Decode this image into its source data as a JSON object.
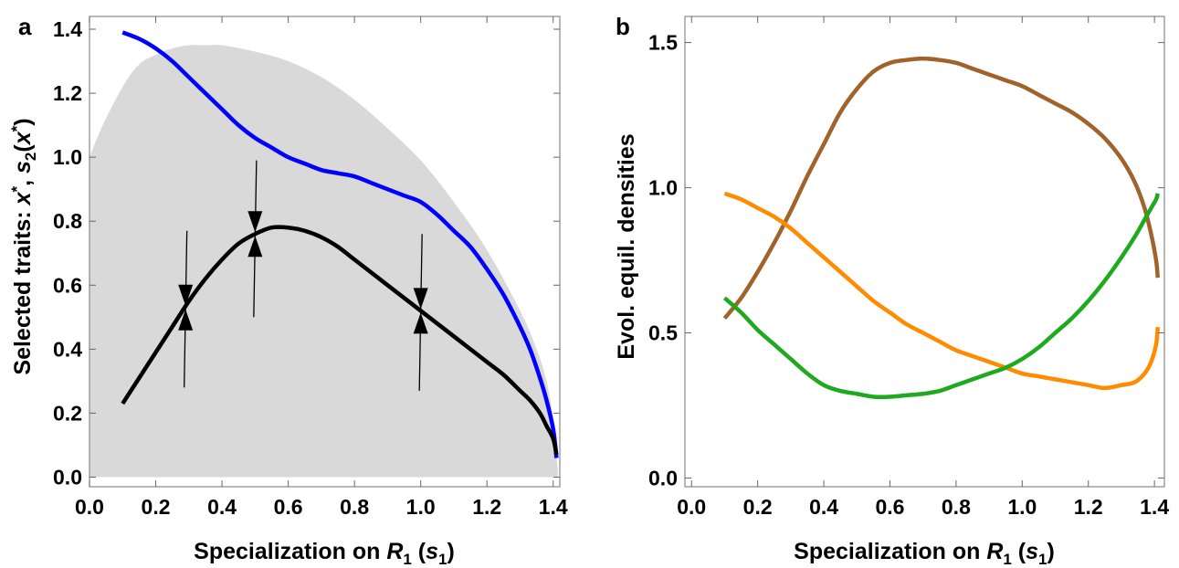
{
  "chart_data": [
    {
      "panel_label": "a",
      "type": "line",
      "xlabel": {
        "main": "Specialization on ",
        "var": "R",
        "sub": "1",
        "paren": "s",
        "paren_sub": "1"
      },
      "ylabel": {
        "main": "Selected traits: ",
        "x": "x",
        "star": "*",
        "s": "s",
        "s_sub": "2",
        "x2": "x",
        "star2": "*"
      },
      "xlim": [
        0.0,
        1.42
      ],
      "ylim": [
        -0.03,
        1.44
      ],
      "xticks": [
        "0.0",
        "0.2",
        "0.4",
        "0.6",
        "0.8",
        "1.0",
        "1.2",
        "1.4"
      ],
      "yticks": [
        "0.0",
        "0.2",
        "0.4",
        "0.6",
        "0.8",
        "1.0",
        "1.2",
        "1.4"
      ],
      "grid": false,
      "shaded_region": {
        "color": "#d9d9d9",
        "upper": {
          "x": [
            0.0,
            0.04,
            0.1,
            0.15,
            0.2,
            0.25,
            0.3,
            0.35,
            0.4,
            0.5,
            0.6,
            0.7,
            0.8,
            0.9,
            1.0,
            1.1,
            1.2,
            1.3,
            1.35,
            1.38,
            1.4,
            1.414
          ],
          "y": [
            1.0,
            1.1,
            1.22,
            1.29,
            1.32,
            1.34,
            1.35,
            1.35,
            1.35,
            1.33,
            1.3,
            1.25,
            1.18,
            1.09,
            0.99,
            0.86,
            0.71,
            0.52,
            0.4,
            0.3,
            0.18,
            0.02
          ]
        },
        "lower": 0.0
      },
      "series": [
        {
          "color": "#0000ff",
          "x": [
            0.1,
            0.15,
            0.2,
            0.25,
            0.3,
            0.35,
            0.4,
            0.45,
            0.5,
            0.55,
            0.6,
            0.65,
            0.7,
            0.75,
            0.8,
            0.85,
            0.9,
            0.95,
            1.0,
            1.05,
            1.1,
            1.15,
            1.2,
            1.25,
            1.3,
            1.33,
            1.36,
            1.38,
            1.4,
            1.41
          ],
          "y": [
            1.39,
            1.37,
            1.34,
            1.3,
            1.25,
            1.2,
            1.15,
            1.1,
            1.06,
            1.03,
            1.0,
            0.98,
            0.96,
            0.95,
            0.94,
            0.92,
            0.9,
            0.88,
            0.86,
            0.82,
            0.77,
            0.72,
            0.65,
            0.57,
            0.47,
            0.4,
            0.31,
            0.24,
            0.15,
            0.06
          ]
        },
        {
          "color": "#000000",
          "x": [
            0.1,
            0.15,
            0.2,
            0.25,
            0.3,
            0.35,
            0.4,
            0.45,
            0.5,
            0.55,
            0.6,
            0.65,
            0.7,
            0.75,
            0.8,
            0.85,
            0.9,
            0.95,
            1.0,
            1.05,
            1.1,
            1.15,
            1.2,
            1.25,
            1.3,
            1.33,
            1.36,
            1.38,
            1.4,
            1.41
          ],
          "y": [
            0.23,
            0.31,
            0.39,
            0.47,
            0.55,
            0.62,
            0.68,
            0.73,
            0.76,
            0.78,
            0.78,
            0.77,
            0.75,
            0.72,
            0.68,
            0.64,
            0.6,
            0.56,
            0.52,
            0.48,
            0.44,
            0.4,
            0.36,
            0.32,
            0.27,
            0.24,
            0.2,
            0.16,
            0.12,
            0.07
          ]
        }
      ],
      "arrows": [
        {
          "x": 0.29,
          "y": 0.53,
          "y_top": 0.77,
          "y_bottom": 0.28
        },
        {
          "x": 0.5,
          "y": 0.76,
          "y_top": 0.99,
          "y_bottom": 0.5
        },
        {
          "x": 1.0,
          "y": 0.52,
          "y_top": 0.76,
          "y_bottom": 0.27
        }
      ]
    },
    {
      "panel_label": "b",
      "type": "line",
      "xlabel": {
        "main": "Specialization on ",
        "var": "R",
        "sub": "1",
        "paren": "s",
        "paren_sub": "1"
      },
      "ylabel": "Evol. equil. densities",
      "xlim": [
        -0.02,
        1.43
      ],
      "ylim": [
        -0.03,
        1.59
      ],
      "xticks": [
        "0.0",
        "0.2",
        "0.4",
        "0.6",
        "0.8",
        "1.0",
        "1.2",
        "1.4"
      ],
      "yticks": [
        "0.0",
        "0.5",
        "1.0",
        "1.5"
      ],
      "grid": false,
      "series": [
        {
          "color": "#a0632c",
          "x": [
            0.1,
            0.15,
            0.2,
            0.25,
            0.3,
            0.35,
            0.4,
            0.45,
            0.5,
            0.55,
            0.6,
            0.65,
            0.7,
            0.75,
            0.8,
            0.85,
            0.9,
            0.95,
            1.0,
            1.05,
            1.1,
            1.15,
            1.2,
            1.25,
            1.3,
            1.34,
            1.37,
            1.39,
            1.405,
            1.41
          ],
          "y": [
            0.55,
            0.62,
            0.71,
            0.81,
            0.92,
            1.04,
            1.15,
            1.26,
            1.34,
            1.4,
            1.43,
            1.44,
            1.445,
            1.44,
            1.43,
            1.41,
            1.39,
            1.37,
            1.35,
            1.32,
            1.29,
            1.26,
            1.22,
            1.17,
            1.1,
            1.02,
            0.93,
            0.84,
            0.75,
            0.69
          ]
        },
        {
          "color": "#ff8c00",
          "x": [
            0.1,
            0.15,
            0.2,
            0.25,
            0.3,
            0.35,
            0.4,
            0.45,
            0.5,
            0.55,
            0.6,
            0.65,
            0.7,
            0.75,
            0.8,
            0.85,
            0.9,
            0.95,
            1.0,
            1.05,
            1.1,
            1.15,
            1.2,
            1.25,
            1.3,
            1.34,
            1.37,
            1.39,
            1.405,
            1.41
          ],
          "y": [
            0.98,
            0.96,
            0.93,
            0.9,
            0.86,
            0.81,
            0.76,
            0.71,
            0.66,
            0.61,
            0.57,
            0.53,
            0.5,
            0.47,
            0.44,
            0.42,
            0.4,
            0.38,
            0.36,
            0.35,
            0.34,
            0.33,
            0.32,
            0.31,
            0.32,
            0.33,
            0.36,
            0.4,
            0.46,
            0.52
          ]
        },
        {
          "color": "#1ea91e",
          "x": [
            0.1,
            0.15,
            0.2,
            0.25,
            0.3,
            0.35,
            0.4,
            0.45,
            0.5,
            0.55,
            0.6,
            0.65,
            0.7,
            0.75,
            0.8,
            0.85,
            0.9,
            0.95,
            1.0,
            1.05,
            1.1,
            1.15,
            1.2,
            1.25,
            1.3,
            1.34,
            1.37,
            1.39,
            1.405,
            1.41
          ],
          "y": [
            0.62,
            0.57,
            0.51,
            0.46,
            0.41,
            0.36,
            0.32,
            0.3,
            0.29,
            0.28,
            0.28,
            0.285,
            0.29,
            0.3,
            0.32,
            0.34,
            0.36,
            0.38,
            0.41,
            0.45,
            0.5,
            0.55,
            0.61,
            0.68,
            0.76,
            0.83,
            0.89,
            0.93,
            0.96,
            0.98
          ]
        }
      ]
    }
  ]
}
